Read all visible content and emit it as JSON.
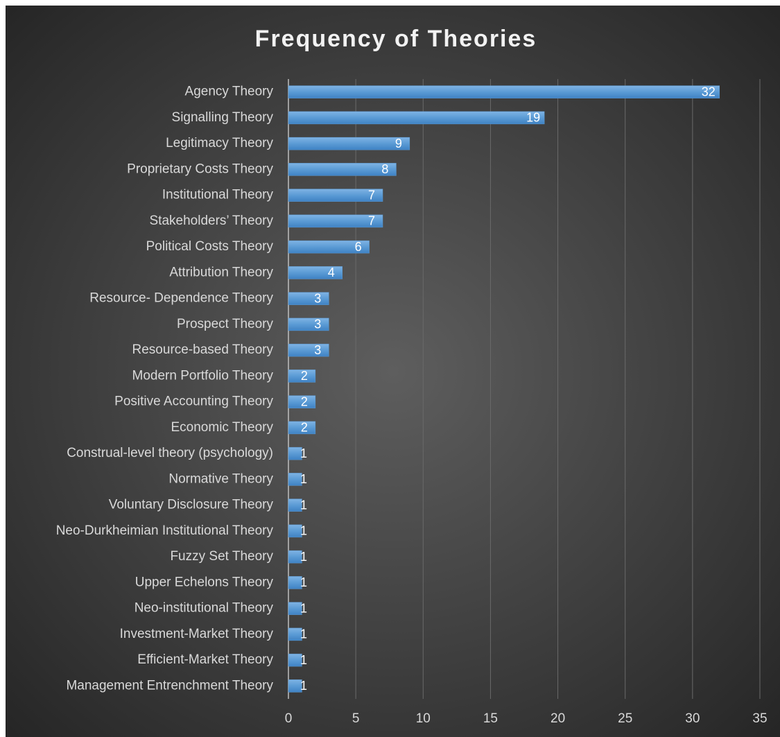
{
  "chart_data": {
    "type": "bar",
    "orientation": "horizontal",
    "title": "Frequency of Theories",
    "categories": [
      "Agency Theory",
      "Signalling Theory",
      "Legitimacy Theory",
      "Proprietary Costs Theory",
      "Institutional Theory",
      "Stakeholders’ Theory",
      "Political Costs Theory",
      "Attribution Theory",
      "Resource- Dependence Theory",
      "Prospect Theory",
      "Resource-based Theory",
      "Modern Portfolio Theory",
      "Positive Accounting Theory",
      "Economic Theory",
      "Construal-level theory (psychology)",
      "Normative Theory",
      "Voluntary Disclosure Theory",
      "Neo-Durkheimian Institutional Theory",
      "Fuzzy Set Theory",
      "Upper Echelons Theory",
      "Neo-institutional Theory",
      "Investment-Market Theory",
      "Efficient-Market Theory",
      "Management Entrenchment Theory"
    ],
    "values": [
      32,
      19,
      9,
      8,
      7,
      7,
      6,
      4,
      3,
      3,
      3,
      2,
      2,
      2,
      1,
      1,
      1,
      1,
      1,
      1,
      1,
      1,
      1,
      1
    ],
    "color": "#5b9bd5",
    "xlim": [
      0,
      35
    ],
    "xticks": [
      0,
      5,
      10,
      15,
      20,
      25,
      30,
      35
    ],
    "grid": true
  }
}
